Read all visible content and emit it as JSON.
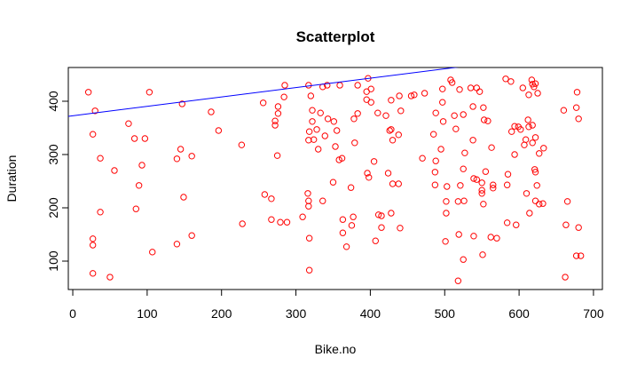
{
  "chart_data": {
    "type": "scatter",
    "title": "Scatterplot",
    "x_label": "Bike.no",
    "y_label": "Duration",
    "color": "red",
    "x": [
      21,
      30,
      27,
      37,
      37,
      27,
      27,
      27,
      50,
      56,
      75,
      83,
      97,
      93,
      89,
      85,
      103,
      107,
      140,
      145,
      147,
      149,
      160,
      160,
      140,
      186,
      196,
      227,
      228,
      256,
      258,
      267,
      267,
      272,
      272,
      276,
      276,
      275,
      279,
      288,
      284,
      309,
      316,
      317,
      317,
      318,
      318,
      285,
      317,
      320,
      322,
      322,
      318,
      324,
      328,
      330,
      317,
      333,
      336,
      342,
      343,
      339,
      336,
      351,
      355,
      353,
      350,
      358,
      362,
      363,
      363,
      368,
      375,
      374,
      377,
      383,
      378,
      383,
      379,
      359,
      397,
      395,
      401,
      395,
      401,
      396,
      398,
      405,
      410,
      411,
      415,
      415,
      407,
      421,
      426,
      424,
      428,
      428,
      428,
      430,
      430,
      438,
      439,
      441,
      438,
      440,
      455,
      459,
      470,
      473,
      488,
      487,
      487,
      485,
      488,
      497,
      495,
      497,
      502,
      502,
      503,
      498,
      501,
      508,
      513,
      515,
      510,
      518,
      519,
      518,
      521,
      520,
      525,
      525,
      527,
      526,
      525,
      535,
      538,
      538,
      539,
      539,
      543,
      543,
      547,
      552,
      553,
      550,
      550,
      550,
      552,
      551,
      555,
      558,
      563,
      565,
      565,
      562,
      570,
      582,
      584,
      584,
      585,
      589,
      590,
      594,
      599,
      602,
      594,
      596,
      605,
      607,
      609,
      610,
      612,
      613,
      617,
      618,
      618,
      614,
      620,
      622,
      621,
      622,
      624,
      622,
      625,
      627,
      627,
      632,
      633,
      622,
      618,
      613,
      660,
      662,
      663,
      665,
      677,
      678,
      677,
      683,
      680,
      680
    ],
    "values": [
      417,
      382,
      338,
      293,
      192,
      142,
      130,
      77,
      70,
      270,
      358,
      330,
      330,
      280,
      242,
      198,
      417,
      117,
      292,
      310,
      395,
      220,
      297,
      148,
      132,
      380,
      345,
      318,
      170,
      397,
      225,
      217,
      178,
      363,
      355,
      377,
      390,
      298,
      173,
      173,
      408,
      183,
      227,
      213,
      203,
      143,
      83,
      430,
      430,
      410,
      383,
      362,
      343,
      328,
      347,
      310,
      327,
      378,
      427,
      430,
      367,
      335,
      213,
      362,
      345,
      315,
      248,
      290,
      293,
      178,
      153,
      127,
      167,
      238,
      183,
      430,
      367,
      377,
      322,
      430,
      443,
      418,
      423,
      403,
      398,
      265,
      257,
      287,
      378,
      187,
      163,
      185,
      138,
      373,
      345,
      265,
      347,
      190,
      402,
      245,
      327,
      337,
      410,
      382,
      245,
      162,
      410,
      412,
      293,
      415,
      288,
      267,
      243,
      338,
      378,
      423,
      310,
      398,
      212,
      190,
      240,
      362,
      137,
      440,
      373,
      348,
      435,
      212,
      150,
      63,
      242,
      422,
      273,
      375,
      303,
      213,
      103,
      425,
      327,
      390,
      147,
      255,
      253,
      425,
      418,
      388,
      365,
      247,
      233,
      227,
      207,
      112,
      268,
      363,
      313,
      237,
      243,
      145,
      143,
      442,
      172,
      243,
      263,
      437,
      343,
      353,
      352,
      347,
      300,
      168,
      425,
      318,
      328,
      227,
      365,
      412,
      440,
      432,
      355,
      190,
      427,
      433,
      272,
      267,
      242,
      213,
      415,
      302,
      207,
      208,
      312,
      332,
      322,
      352,
      383,
      70,
      168,
      212,
      388,
      417,
      110,
      110,
      367,
      163
    ],
    "regression_line": {
      "intercept": 372.8,
      "slope": 0.176,
      "color": "blue"
    },
    "xlim": [
      -6,
      712
    ],
    "ylim": [
      46.7,
      463.3
    ],
    "xticks": [
      0,
      100,
      200,
      300,
      400,
      500,
      600,
      700
    ],
    "yticks": [
      100,
      200,
      300,
      400
    ]
  }
}
